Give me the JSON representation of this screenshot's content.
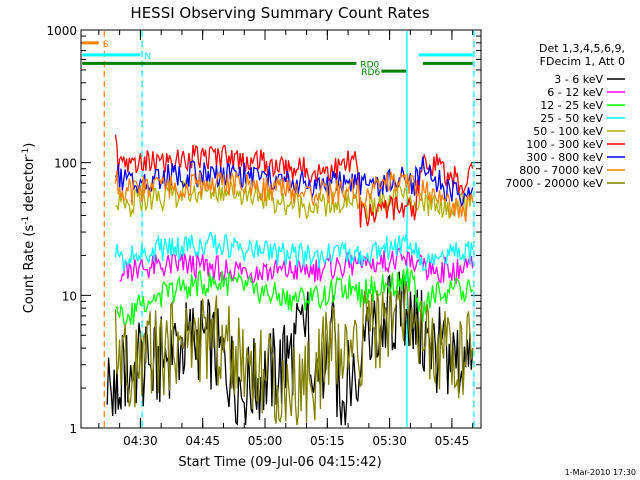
{
  "chart_data": {
    "type": "line",
    "title": "HESSI Observing Summary Count Rates",
    "xlabel": "Start Time (09-Jul-06 04:15:42)",
    "ylabel_parts": [
      "Count Rate (s",
      "-1",
      " detector",
      "-1",
      ")"
    ],
    "yscale": "log",
    "ylim": [
      1,
      1000
    ],
    "xlim": [
      "04:15:42",
      "05:52:00"
    ],
    "x_ticks": [
      {
        "t": "04:30",
        "min": 270
      },
      {
        "t": "04:45",
        "min": 285
      },
      {
        "t": "05:00",
        "min": 300
      },
      {
        "t": "05:15",
        "min": 315
      },
      {
        "t": "05:30",
        "min": 330
      },
      {
        "t": "05:45",
        "min": 345
      }
    ],
    "y_ticks": [
      {
        "label": "1",
        "v": 1
      },
      {
        "label": "10",
        "v": 10
      },
      {
        "label": "100",
        "v": 100
      },
      {
        "label": "1000",
        "v": 1000
      }
    ],
    "legend": {
      "header": [
        "Det 1,3,4,5,6,9,",
        "FDecim 1, Att 0"
      ],
      "position": "right"
    },
    "series": [
      {
        "name": "3 - 6 keV",
        "color": "#000000",
        "x": [
          262,
          264,
          266,
          270,
          272,
          278,
          285,
          295,
          305,
          310,
          314,
          316,
          318,
          322,
          324,
          330,
          335,
          336,
          340,
          344,
          348,
          350
        ],
        "y": [
          2.5,
          1.5,
          2.5,
          3,
          2.5,
          4,
          5,
          2,
          3,
          6,
          2,
          6,
          1.5,
          3,
          4,
          7,
          8,
          6,
          4,
          3.5,
          3,
          4
        ]
      },
      {
        "name": "6 - 12 keV",
        "color": "#ff00ff",
        "x": [
          265,
          266,
          268,
          270,
          280,
          290,
          300,
          310,
          320,
          323,
          330,
          335,
          336,
          338,
          340,
          345,
          348,
          350
        ],
        "y": [
          16,
          15,
          15.5,
          16,
          17,
          16,
          15,
          15.5,
          17,
          17,
          18,
          18,
          16,
          16,
          15.5,
          15.5,
          16,
          16
        ]
      },
      {
        "name": "12 - 25 keV",
        "color": "#00ff00",
        "x": [
          264,
          265,
          268,
          270,
          275,
          282,
          290,
          298,
          305,
          312,
          318,
          322,
          323,
          325,
          330,
          334,
          336,
          338,
          340,
          345,
          348,
          350
        ],
        "y": [
          9,
          7.5,
          7,
          9,
          10,
          12,
          12.5,
          11,
          9.5,
          9.5,
          11,
          12,
          10,
          11,
          12,
          13,
          12,
          7,
          10,
          11,
          10.5,
          11
        ]
      },
      {
        "name": "25 - 50 keV",
        "color": "#00ffff",
        "x": [
          264,
          265,
          268,
          270,
          272,
          278,
          285,
          292,
          300,
          308,
          315,
          320,
          323,
          325,
          330,
          334,
          336,
          338,
          340,
          345,
          348,
          350
        ],
        "y": [
          22,
          19,
          19,
          21,
          22,
          23,
          24.5,
          23,
          21,
          19.5,
          20,
          21,
          20,
          21,
          23,
          24,
          22,
          18,
          21,
          21,
          20,
          22
        ]
      },
      {
        "name": "50 - 100 keV",
        "color": "#b0b000",
        "x": [
          264,
          265,
          268,
          270,
          275,
          282,
          290,
          298,
          305,
          312,
          318,
          322,
          323,
          326,
          330,
          334,
          336,
          338,
          340,
          345,
          348,
          350
        ],
        "y": [
          58,
          50,
          48,
          53,
          55,
          60,
          62,
          57,
          50,
          47,
          49,
          53,
          44,
          48,
          54,
          55,
          52,
          48,
          50,
          47,
          48,
          52
        ]
      },
      {
        "name": "100 - 300 keV",
        "color": "#ff0000",
        "x": [
          264,
          265,
          268,
          270,
          275,
          282,
          290,
          298,
          305,
          312,
          318,
          322,
          323,
          326,
          330,
          334,
          336,
          338,
          340,
          345,
          348,
          350
        ],
        "y": [
          130,
          95,
          90,
          98,
          100,
          108,
          112,
          102,
          92,
          88,
          92,
          105,
          40,
          42,
          45,
          47,
          45,
          118,
          100,
          78,
          70,
          90
        ]
      },
      {
        "name": "300 - 800 keV",
        "color": "#0000ff",
        "x": [
          264,
          265,
          268,
          270,
          275,
          282,
          290,
          298,
          305,
          312,
          318,
          322,
          323,
          326,
          330,
          334,
          336,
          338,
          340,
          345,
          348,
          350
        ],
        "y": [
          95,
          75,
          72,
          75,
          78,
          82,
          84,
          78,
          72,
          68,
          70,
          75,
          65,
          68,
          73,
          74,
          70,
          90,
          78,
          60,
          52,
          65
        ]
      },
      {
        "name": "800 - 7000 keV",
        "color": "#ff8000",
        "x": [
          264,
          265,
          268,
          270,
          275,
          282,
          290,
          298,
          305,
          312,
          318,
          322,
          323,
          326,
          330,
          334,
          336,
          338,
          340,
          345,
          348,
          350
        ],
        "y": [
          75,
          62,
          60,
          63,
          65,
          68,
          70,
          66,
          61,
          58,
          60,
          64,
          58,
          62,
          68,
          70,
          66,
          65,
          58,
          48,
          42,
          50
        ]
      },
      {
        "name": "7000 - 20000 keV",
        "color": "#808000",
        "x": [
          264,
          265,
          268,
          270,
          272,
          278,
          285,
          292,
          300,
          306,
          312,
          316,
          320,
          322,
          324,
          330,
          335,
          338,
          340,
          344,
          348,
          350
        ],
        "y": [
          4,
          3,
          2.5,
          3,
          3.5,
          4,
          5,
          4,
          2.5,
          2,
          2.5,
          4,
          3,
          3,
          5,
          6,
          7,
          5,
          3,
          3.5,
          3,
          4
        ]
      }
    ],
    "state_bars": [
      {
        "label": "S",
        "color": "#ff8000",
        "y": 800,
        "segments": [
          [
            256,
            260
          ]
        ]
      },
      {
        "label": "N",
        "color": "#00ffff",
        "y": 650,
        "segments": [
          [
            256,
            270
          ],
          [
            337,
            350
          ]
        ]
      },
      {
        "label": "RD0",
        "color": "#008000",
        "y": 560,
        "segments": [
          [
            256,
            322
          ],
          [
            338,
            350
          ]
        ]
      },
      {
        "label": "RD6",
        "color": "#008000",
        "y": 490,
        "segments": [
          [
            328,
            334
          ]
        ]
      }
    ],
    "vlines": [
      {
        "x": 261.3,
        "color": "#ff8000",
        "style": "dashed"
      },
      {
        "x": 270.4,
        "color": "#00ffff",
        "style": "dashed"
      },
      {
        "x": 334.2,
        "color": "#00ffff",
        "style": "solid"
      },
      {
        "x": 350.3,
        "color": "#00ffff",
        "style": "dashed"
      }
    ],
    "footer": "1-Mar-2010 17:30"
  }
}
